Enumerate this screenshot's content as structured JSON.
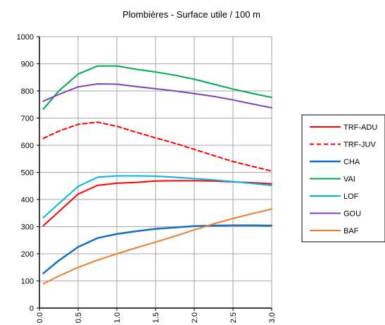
{
  "chart_data": {
    "type": "line",
    "title": "Plombières - Surface utile / 100 m",
    "xlabel": "",
    "ylabel": "",
    "xlim": [
      0,
      3
    ],
    "ylim": [
      0,
      1000
    ],
    "x_ticks": [
      "0.0",
      "0.5",
      "1.0",
      "1.5",
      "2.0",
      "2.5",
      "3.0"
    ],
    "y_ticks": [
      "0",
      "100",
      "200",
      "300",
      "400",
      "500",
      "600",
      "700",
      "800",
      "900",
      "1000"
    ],
    "grid": true,
    "legend_position": "right",
    "x": [
      0.05,
      0.25,
      0.5,
      0.75,
      1.0,
      1.25,
      1.5,
      1.75,
      2.0,
      2.25,
      2.5,
      2.75,
      3.0
    ],
    "series": [
      {
        "name": "TRF-ADU",
        "color": "#ff0000",
        "dash": "solid",
        "width": 2,
        "values": [
          303,
          355,
          420,
          452,
          460,
          463,
          468,
          469,
          469,
          468,
          465,
          462,
          458
        ]
      },
      {
        "name": "TRF-JUV",
        "color": "#ff0000",
        "dash": "dashed",
        "width": 2,
        "values": [
          625,
          652,
          677,
          685,
          670,
          648,
          627,
          607,
          585,
          562,
          540,
          522,
          505
        ]
      },
      {
        "name": "CHA",
        "color": "#1a6ec0",
        "dash": "solid",
        "width": 2.5,
        "values": [
          128,
          175,
          225,
          258,
          273,
          283,
          292,
          297,
          302,
          304,
          305,
          305,
          304
        ]
      },
      {
        "name": "VAI",
        "color": "#00a84f",
        "dash": "solid",
        "width": 2,
        "values": [
          733,
          800,
          862,
          892,
          892,
          880,
          870,
          858,
          843,
          825,
          807,
          791,
          776
        ]
      },
      {
        "name": "LOF",
        "color": "#00b4f0",
        "dash": "solid",
        "width": 2,
        "values": [
          333,
          385,
          448,
          482,
          487,
          487,
          486,
          482,
          477,
          472,
          466,
          459,
          452
        ]
      },
      {
        "name": "GOU",
        "color": "#7f3fbf",
        "dash": "solid",
        "width": 2,
        "values": [
          762,
          787,
          815,
          826,
          825,
          816,
          808,
          800,
          790,
          780,
          767,
          752,
          738
        ]
      },
      {
        "name": "BAF",
        "color": "#ed7d31",
        "dash": "solid",
        "width": 2,
        "values": [
          90,
          118,
          150,
          177,
          200,
          222,
          243,
          265,
          288,
          310,
          330,
          348,
          365
        ]
      }
    ]
  }
}
